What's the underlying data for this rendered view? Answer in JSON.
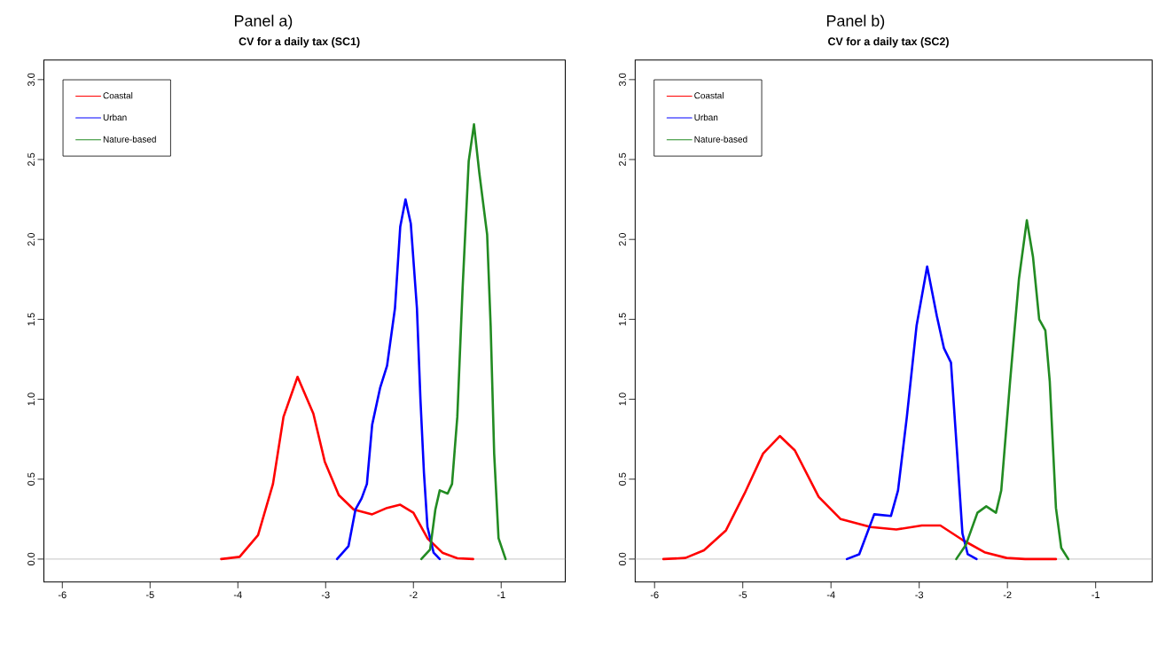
{
  "chart_data": [
    {
      "type": "line",
      "title": "CV for a daily tax (SC1)",
      "annotations": [
        "Panel a)"
      ],
      "legend": "top left",
      "grid": false,
      "marker": "none",
      "line_style": "solid",
      "xlim": [
        -6.21,
        -0.27
      ],
      "ylim": [
        -0.144,
        3.122
      ],
      "xticks": [
        -6,
        -5,
        -4,
        -3,
        -2,
        -1
      ],
      "yticks": [
        {
          "value": 0,
          "label": "0.0"
        },
        0.5,
        {
          "value": 1,
          "label": "1.0"
        },
        1.5,
        {
          "value": 2,
          "label": "2.0"
        },
        2.5,
        {
          "value": 3,
          "label": "3.0"
        }
      ],
      "ref_lines": [
        {
          "axis": "y",
          "value": 0,
          "color": "#bebebe"
        }
      ],
      "series": [
        {
          "name": "Coastal",
          "color": "#ff0000",
          "x": [
            -4.19,
            -3.98,
            -3.77,
            -3.6,
            -3.48,
            -3.32,
            -3.14,
            -3.01,
            -2.85,
            -2.68,
            -2.47,
            -2.3,
            -2.15,
            -2.0,
            -1.84,
            -1.67,
            -1.5,
            -1.32
          ],
          "values": [
            0,
            0.014,
            0.15,
            0.47,
            0.89,
            1.14,
            0.91,
            0.61,
            0.4,
            0.31,
            0.28,
            0.32,
            0.34,
            0.29,
            0.13,
            0.04,
            0.005,
            0
          ]
        },
        {
          "name": "Urban",
          "color": "#0000ff",
          "x": [
            -2.87,
            -2.74,
            -2.66,
            -2.59,
            -2.53,
            -2.47,
            -2.38,
            -2.3,
            -2.21,
            -2.15,
            -2.09,
            -2.03,
            -1.96,
            -1.92,
            -1.88,
            -1.84,
            -1.77,
            -1.7
          ],
          "values": [
            0,
            0.08,
            0.31,
            0.38,
            0.47,
            0.84,
            1.07,
            1.21,
            1.57,
            2.08,
            2.25,
            2.1,
            1.57,
            1.0,
            0.54,
            0.2,
            0.04,
            0
          ]
        },
        {
          "name": "Nature-based",
          "color": "#228b22",
          "x": [
            -1.91,
            -1.81,
            -1.75,
            -1.7,
            -1.61,
            -1.56,
            -1.5,
            -1.44,
            -1.37,
            -1.31,
            -1.25,
            -1.16,
            -1.12,
            -1.08,
            -1.03,
            -0.95
          ],
          "values": [
            0,
            0.06,
            0.31,
            0.43,
            0.41,
            0.47,
            0.89,
            1.69,
            2.49,
            2.72,
            2.42,
            2.03,
            1.46,
            0.66,
            0.13,
            0
          ]
        }
      ]
    },
    {
      "type": "line",
      "title": "CV for a daily tax (SC2)",
      "annotations": [
        "Panel b)"
      ],
      "legend": "top left",
      "grid": false,
      "marker": "none",
      "line_style": "solid",
      "xlim": [
        -6.22,
        -0.36
      ],
      "ylim": [
        -0.144,
        3.122
      ],
      "xticks": [
        -6,
        -5,
        -4,
        -3,
        -2,
        -1
      ],
      "yticks": [
        {
          "value": 0,
          "label": "0.0"
        },
        0.5,
        {
          "value": 1,
          "label": "1.0"
        },
        1.5,
        {
          "value": 2,
          "label": "2.0"
        },
        2.5,
        {
          "value": 3,
          "label": "3.0"
        }
      ],
      "ref_lines": [
        {
          "axis": "y",
          "value": 0,
          "color": "#bebebe"
        }
      ],
      "series": [
        {
          "name": "Coastal",
          "color": "#ff0000",
          "x": [
            -5.9,
            -5.65,
            -5.44,
            -5.19,
            -4.98,
            -4.77,
            -4.58,
            -4.41,
            -4.14,
            -3.89,
            -3.55,
            -3.26,
            -2.97,
            -2.76,
            -2.51,
            -2.26,
            -2.01,
            -1.8,
            -1.45
          ],
          "values": [
            0,
            0.007,
            0.055,
            0.18,
            0.41,
            0.66,
            0.77,
            0.68,
            0.39,
            0.25,
            0.2,
            0.185,
            0.21,
            0.21,
            0.12,
            0.043,
            0.007,
            0,
            0
          ]
        },
        {
          "name": "Urban",
          "color": "#0000ff",
          "x": [
            -3.82,
            -3.68,
            -3.51,
            -3.32,
            -3.24,
            -3.14,
            -3.03,
            -2.91,
            -2.8,
            -2.72,
            -2.64,
            -2.57,
            -2.51,
            -2.45,
            -2.35
          ],
          "values": [
            0,
            0.03,
            0.28,
            0.27,
            0.43,
            0.89,
            1.46,
            1.83,
            1.52,
            1.32,
            1.23,
            0.66,
            0.16,
            0.03,
            0
          ]
        },
        {
          "name": "Nature-based",
          "color": "#228b22",
          "x": [
            -2.58,
            -2.47,
            -2.34,
            -2.24,
            -2.13,
            -2.07,
            -1.97,
            -1.87,
            -1.78,
            -1.71,
            -1.64,
            -1.57,
            -1.52,
            -1.45,
            -1.39,
            -1.31
          ],
          "values": [
            0,
            0.09,
            0.29,
            0.33,
            0.29,
            0.43,
            1.11,
            1.75,
            2.12,
            1.89,
            1.5,
            1.43,
            1.11,
            0.32,
            0.07,
            0
          ]
        }
      ]
    }
  ]
}
